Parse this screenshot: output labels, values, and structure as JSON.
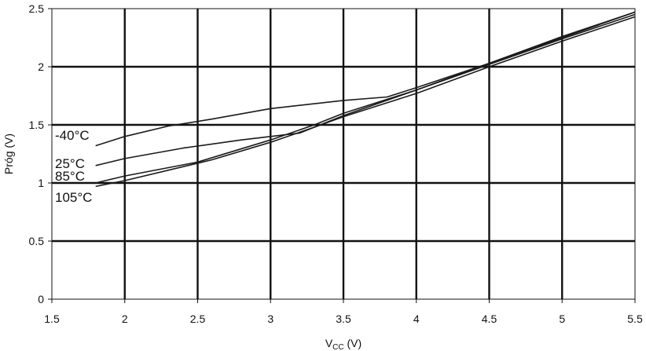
{
  "chart_data": {
    "type": "line",
    "title": "",
    "xlabel_main": "V",
    "xlabel_sub": "CC",
    "xlabel_unit": " (V)",
    "ylabel": "Próg (V)",
    "xlim": [
      1.5,
      5.5
    ],
    "ylim": [
      0,
      2.5
    ],
    "x_ticks": [
      "1.5",
      "2",
      "2.5",
      "3",
      "3.5",
      "4",
      "4.5",
      "5",
      "5.5"
    ],
    "y_ticks": [
      "0",
      "0.5",
      "1",
      "1.5",
      "2",
      "2.5"
    ],
    "grid": true,
    "series": [
      {
        "name": "-40°C",
        "points": [
          [
            1.8,
            1.32
          ],
          [
            2.0,
            1.4
          ],
          [
            2.3,
            1.49
          ],
          [
            2.6,
            1.55
          ],
          [
            3.0,
            1.64
          ],
          [
            3.5,
            1.71
          ],
          [
            3.8,
            1.74
          ],
          [
            4.0,
            1.82
          ],
          [
            4.5,
            2.03
          ],
          [
            5.0,
            2.26
          ],
          [
            5.5,
            2.47
          ]
        ]
      },
      {
        "name": "25°C",
        "points": [
          [
            1.8,
            1.15
          ],
          [
            2.0,
            1.21
          ],
          [
            2.4,
            1.3
          ],
          [
            2.8,
            1.37
          ],
          [
            3.2,
            1.43
          ],
          [
            3.5,
            1.58
          ],
          [
            4.0,
            1.8
          ],
          [
            4.5,
            2.03
          ],
          [
            5.0,
            2.25
          ],
          [
            5.5,
            2.47
          ]
        ]
      },
      {
        "name": "85°C",
        "points": [
          [
            1.8,
            1.0
          ],
          [
            2.0,
            1.06
          ],
          [
            2.5,
            1.18
          ],
          [
            3.0,
            1.37
          ],
          [
            3.3,
            1.5
          ],
          [
            3.5,
            1.6
          ],
          [
            4.0,
            1.8
          ],
          [
            4.5,
            2.02
          ],
          [
            5.0,
            2.24
          ],
          [
            5.5,
            2.45
          ]
        ]
      },
      {
        "name": "105°C",
        "points": [
          [
            1.8,
            0.97
          ],
          [
            2.0,
            1.02
          ],
          [
            2.6,
            1.2
          ],
          [
            3.0,
            1.35
          ],
          [
            3.3,
            1.48
          ],
          [
            3.5,
            1.57
          ],
          [
            4.0,
            1.77
          ],
          [
            4.5,
            2.0
          ],
          [
            5.0,
            2.22
          ],
          [
            5.5,
            2.43
          ]
        ]
      }
    ],
    "line_color": "#1a1a1a",
    "grid_color": "#111111"
  }
}
